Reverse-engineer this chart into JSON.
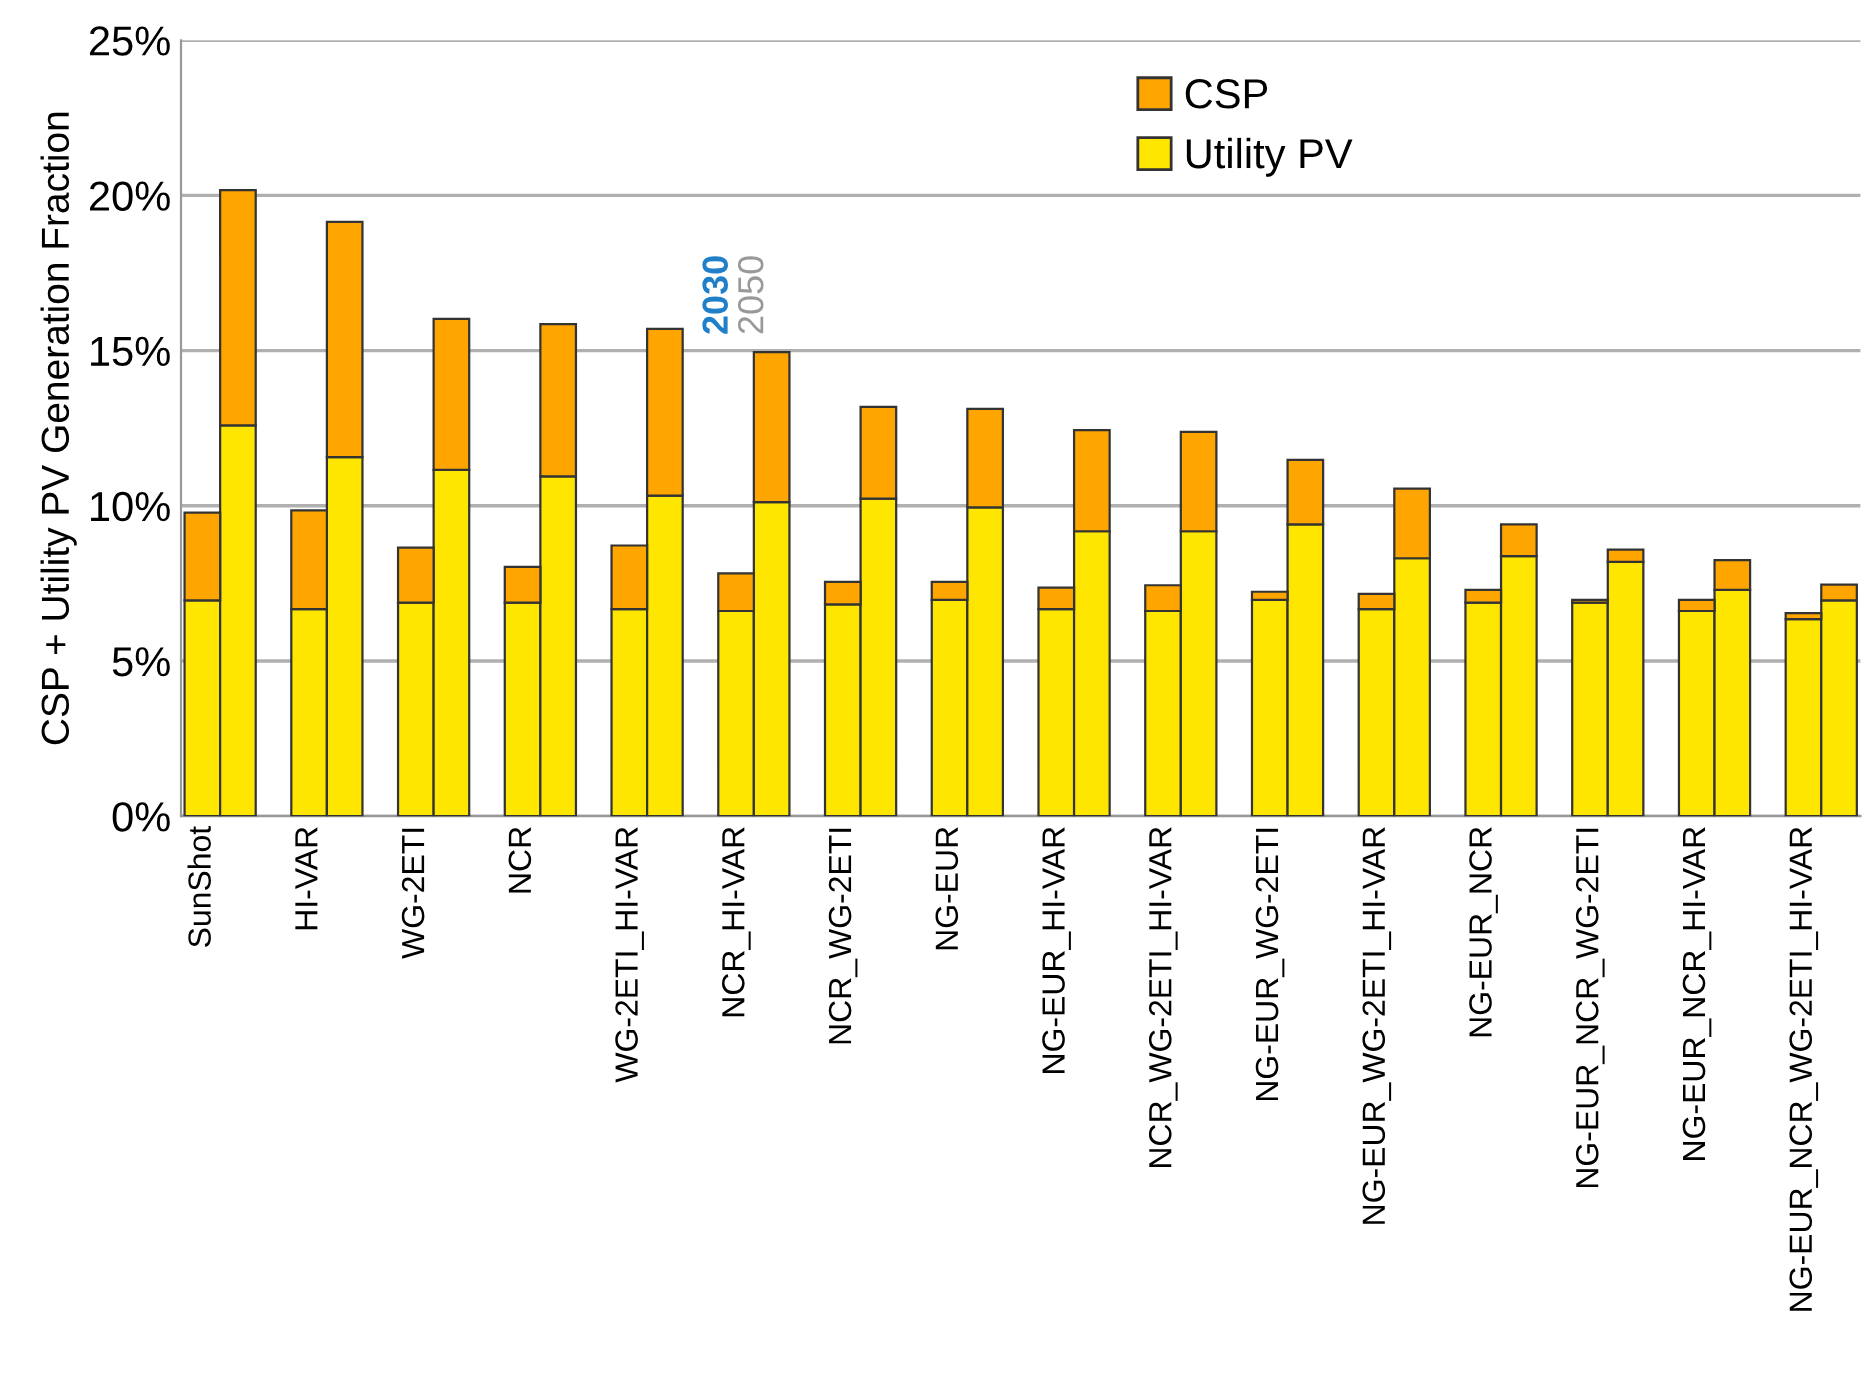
{
  "chart_data": {
    "type": "bar",
    "stacked": true,
    "ylabel": "CSP + Utility PV Generation Fraction",
    "categories": [
      "SunShot",
      null,
      "HI-VAR",
      null,
      "WG-2ETI",
      null,
      "NCR",
      null,
      "WG-2ETI_HI-VAR",
      null,
      "NCR_HI-VAR",
      null,
      "NCR_WG-2ETI",
      null,
      "NG-EUR",
      null,
      "NG-EUR_HI-VAR",
      null,
      "NCR_WG-2ETI_HI-VAR",
      null,
      "NG-EUR_WG-2ETI",
      null,
      "NG-EUR_WG-2ETI_HI-VAR",
      null,
      "NG-EUR_NCR",
      null,
      "NG-EUR_NCR_WG-2ETI",
      null,
      "NG-EUR_NCR_HI-VAR",
      null,
      "NG-EUR_NCR_WG-2ETI_HI-VAR",
      null
    ],
    "series": [
      {
        "name": "Utility PV",
        "color": "#ffe600",
        "values": [
          6.95,
          12.59,
          6.67,
          11.57,
          6.88,
          11.16,
          6.88,
          10.95,
          6.67,
          10.33,
          6.61,
          10.12,
          6.82,
          10.23,
          6.97,
          9.95,
          6.67,
          9.18,
          6.61,
          9.18,
          6.97,
          9.4,
          6.67,
          8.31,
          6.88,
          8.38,
          6.88,
          8.19,
          6.61,
          7.29,
          6.35,
          6.95
        ]
      },
      {
        "name": "CSP",
        "color": "#ffa500",
        "values": [
          2.83,
          7.58,
          3.18,
          7.58,
          1.77,
          4.86,
          1.15,
          4.9,
          2.05,
          5.37,
          1.21,
          4.83,
          0.73,
          2.96,
          0.58,
          3.17,
          0.69,
          3.26,
          0.83,
          3.2,
          0.26,
          2.08,
          0.49,
          2.24,
          0.41,
          1.02,
          0.09,
          0.4,
          0.36,
          0.96,
          0.19,
          0.51
        ]
      }
    ],
    "ylim": [
      0,
      25
    ],
    "yticks": [
      {
        "value": 0,
        "label": "0%"
      },
      {
        "value": 5,
        "label": "5%"
      },
      {
        "value": 10,
        "label": "10%"
      },
      {
        "value": 15,
        "label": "15%"
      },
      {
        "value": 20,
        "label": "20%"
      },
      {
        "value": 25,
        "label": "25%"
      }
    ],
    "grid": "y",
    "legend": "top right",
    "annotations": [
      "2030",
      "2050"
    ]
  }
}
